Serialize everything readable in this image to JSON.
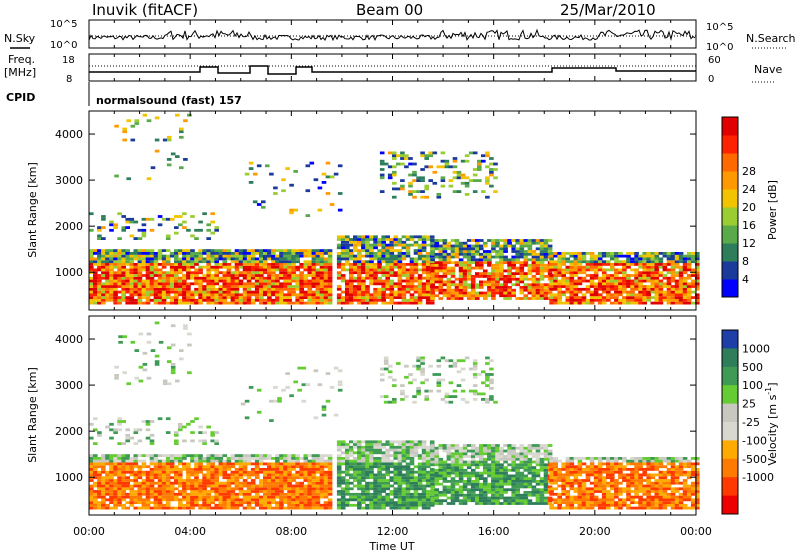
{
  "header": {
    "station": "Inuvik (fitACF)",
    "beam": "Beam 00",
    "date": "25/Mar/2010"
  },
  "noise_panel": {
    "left_label": "N.Sky",
    "right_label": "N.Search",
    "left_ticks": [
      "10^5",
      "10^0"
    ],
    "right_ticks": [
      "10^5",
      "10^0"
    ]
  },
  "freq_panel": {
    "left_label_1": "Freq.",
    "left_label_2": "[MHz]",
    "right_label": "Nave",
    "left_ticks": [
      "18",
      "8"
    ],
    "right_ticks": [
      "60",
      "0"
    ],
    "cpid_label": "CPID",
    "cpid_text": "normalsound (fast) 157"
  },
  "colors": {
    "power_scale": [
      "#0000ff",
      "#1a3a9c",
      "#2e7d5b",
      "#5aa94a",
      "#9acd32",
      "#f2c400",
      "#ff9900",
      "#ff6a00",
      "#ff2200",
      "#e00000"
    ],
    "velocity_scale": [
      "#1e3ea8",
      "#2e7d5b",
      "#3f9a55",
      "#66cc33",
      "#c8c8c0",
      "#d8d8d0",
      "#ffaa00",
      "#ff7a00",
      "#ff3a00",
      "#ee0000"
    ]
  },
  "chart_data": [
    {
      "type": "heatmap",
      "name": "power",
      "ylabel": "Slant Range [km]",
      "y_ticks": [
        "1000",
        "2000",
        "3000",
        "4000"
      ],
      "ylim": [
        180,
        4500
      ],
      "xlim": [
        "00:00",
        "24:00"
      ],
      "colorbar_label": "Power [dB]",
      "colorbar_ticks": [
        "4",
        "8",
        "12",
        "16",
        "20",
        "24",
        "28"
      ],
      "colorbar_range": [
        0,
        32
      ]
    },
    {
      "type": "heatmap",
      "name": "velocity",
      "ylabel": "Slant Range [km]",
      "y_ticks": [
        "1000",
        "2000",
        "3000",
        "4000"
      ],
      "ylim": [
        180,
        4500
      ],
      "xlim": [
        "00:00",
        "24:00"
      ],
      "colorbar_label": "Velocity [m s",
      "colorbar_label_sup": "-1",
      "colorbar_label_end": "]",
      "colorbar_ticks": [
        "1000",
        "500",
        "100",
        "25",
        "-25",
        "-100",
        "-500",
        "-1000"
      ]
    }
  ],
  "x_axis": {
    "ticks": [
      "00:00",
      "04:00",
      "08:00",
      "12:00",
      "16:00",
      "20:00",
      "00:00"
    ],
    "label": "Time UT"
  }
}
